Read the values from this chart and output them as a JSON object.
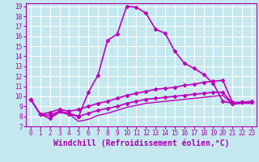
{
  "xlabel": "Windchill (Refroidissement éolien,°C)",
  "xlim": [
    -0.5,
    23.5
  ],
  "ylim": [
    7,
    19.3
  ],
  "xticks": [
    0,
    1,
    2,
    3,
    4,
    5,
    6,
    7,
    8,
    9,
    10,
    11,
    12,
    13,
    14,
    15,
    16,
    17,
    18,
    19,
    20,
    21,
    22,
    23
  ],
  "yticks": [
    7,
    8,
    9,
    10,
    11,
    12,
    13,
    14,
    15,
    16,
    17,
    18,
    19
  ],
  "bg_color": "#c5e8ef",
  "line_color": "#bb00bb",
  "grid_color": "#ffffff",
  "lines": [
    {
      "x": [
        0,
        1,
        2,
        3,
        4,
        5,
        6,
        7,
        8,
        9,
        10,
        11,
        12,
        13,
        14,
        15,
        16,
        17,
        18,
        19,
        20,
        21,
        22,
        23
      ],
      "y": [
        9.7,
        8.2,
        7.8,
        8.5,
        8.2,
        8.0,
        10.4,
        12.1,
        15.6,
        16.2,
        19.0,
        18.9,
        18.3,
        16.7,
        16.3,
        14.5,
        13.3,
        12.8,
        12.2,
        11.3,
        9.5,
        9.3,
        9.4,
        9.5
      ],
      "marker": "D",
      "markersize": 2.5,
      "linewidth": 1.2,
      "linestyle": "-"
    },
    {
      "x": [
        0,
        1,
        2,
        3,
        4,
        5,
        6,
        7,
        8,
        9,
        10,
        11,
        12,
        13,
        14,
        15,
        16,
        17,
        18,
        19,
        20,
        21,
        22,
        23
      ],
      "y": [
        9.7,
        8.2,
        8.4,
        8.7,
        8.5,
        8.7,
        9.0,
        9.3,
        9.5,
        9.8,
        10.1,
        10.3,
        10.5,
        10.7,
        10.8,
        10.9,
        11.1,
        11.2,
        11.4,
        11.5,
        11.6,
        9.4,
        9.4,
        9.4
      ],
      "marker": "D",
      "markersize": 2.5,
      "linewidth": 1.2,
      "linestyle": "-"
    },
    {
      "x": [
        0,
        1,
        2,
        3,
        4,
        5,
        6,
        7,
        8,
        9,
        10,
        11,
        12,
        13,
        14,
        15,
        16,
        17,
        18,
        19,
        20,
        21,
        22,
        23
      ],
      "y": [
        9.7,
        8.2,
        8.1,
        8.5,
        8.3,
        8.0,
        8.3,
        8.6,
        8.8,
        9.0,
        9.3,
        9.5,
        9.7,
        9.8,
        9.9,
        10.0,
        10.1,
        10.2,
        10.3,
        10.4,
        10.4,
        9.3,
        9.4,
        9.4
      ],
      "marker": "D",
      "markersize": 2.5,
      "linewidth": 1.2,
      "linestyle": "-"
    },
    {
      "x": [
        0,
        1,
        2,
        3,
        4,
        5,
        6,
        7,
        8,
        9,
        10,
        11,
        12,
        13,
        14,
        15,
        16,
        17,
        18,
        19,
        20,
        21,
        22,
        23
      ],
      "y": [
        9.7,
        8.2,
        7.8,
        8.4,
        8.2,
        7.5,
        7.7,
        8.1,
        8.3,
        8.6,
        8.9,
        9.1,
        9.3,
        9.4,
        9.5,
        9.6,
        9.7,
        9.8,
        9.9,
        10.0,
        10.1,
        9.2,
        9.3,
        9.3
      ],
      "marker": null,
      "markersize": 0,
      "linewidth": 1.0,
      "linestyle": "-"
    }
  ],
  "font_family": "monospace",
  "tick_fontsize": 5.5,
  "xlabel_fontsize": 7.0,
  "label_color": "#aa00aa"
}
